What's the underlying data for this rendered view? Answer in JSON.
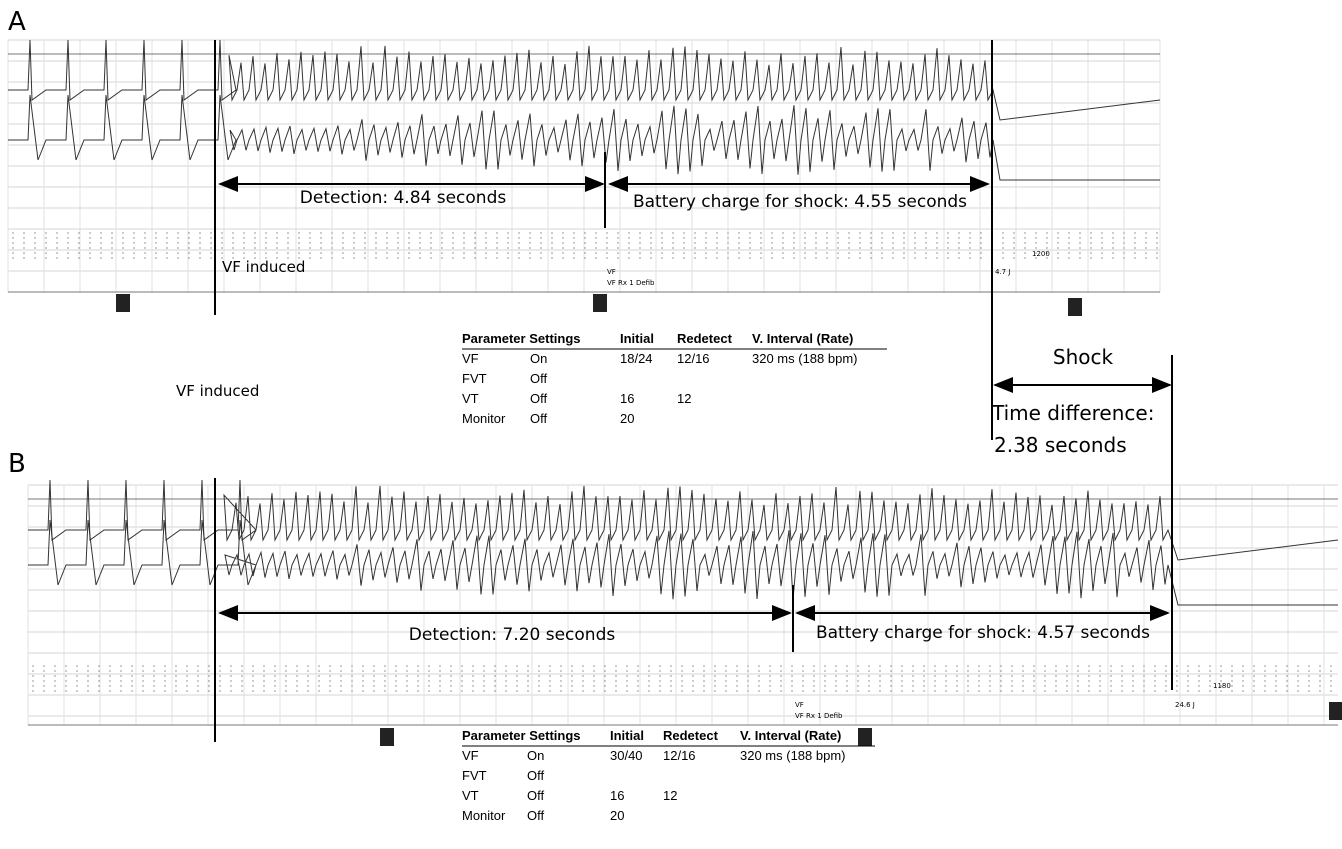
{
  "panels": [
    {
      "label": "A",
      "detection": "Detection: 4.84 seconds",
      "charge": "Battery charge for shock: 4.55 seconds",
      "induced": "VF induced",
      "markers": {
        "vf": "VF",
        "rx": "VF Rx 1 Defib",
        "energy": "4.7 J",
        "interval": "1200"
      },
      "table": {
        "header": [
          "Parameter Settings",
          "Initial",
          "Redetect",
          "V. Interval (Rate)"
        ],
        "rows": [
          [
            "VF",
            "On",
            "18/24",
            "12/16",
            "320 ms (188 bpm)"
          ],
          [
            "FVT",
            "Off"
          ],
          [
            "VT",
            "Off",
            "16",
            "12"
          ],
          [
            "Monitor",
            "Off",
            "20"
          ]
        ]
      }
    },
    {
      "label": "B",
      "detection": "Detection: 7.20 seconds",
      "charge": "Battery charge for shock: 4.57 seconds",
      "markers": {
        "vf": "VF",
        "rx": "VF Rx 1 Defib",
        "energy": "24.6 J",
        "interval": "1180"
      },
      "table": {
        "header": [
          "Parameter Settings",
          "Initial",
          "Redetect",
          "V. Interval (Rate)"
        ],
        "rows": [
          [
            "VF",
            "On",
            "30/40",
            "12/16",
            "320 ms (188 bpm)"
          ],
          [
            "FVT",
            "Off"
          ],
          [
            "VT",
            "Off",
            "16",
            "12"
          ],
          [
            "Monitor",
            "Off",
            "20"
          ]
        ]
      }
    }
  ],
  "annotations": {
    "induced": "VF induced",
    "shock": "Shock",
    "time_difference": "Time difference:",
    "time_value": "2.38 seconds"
  }
}
